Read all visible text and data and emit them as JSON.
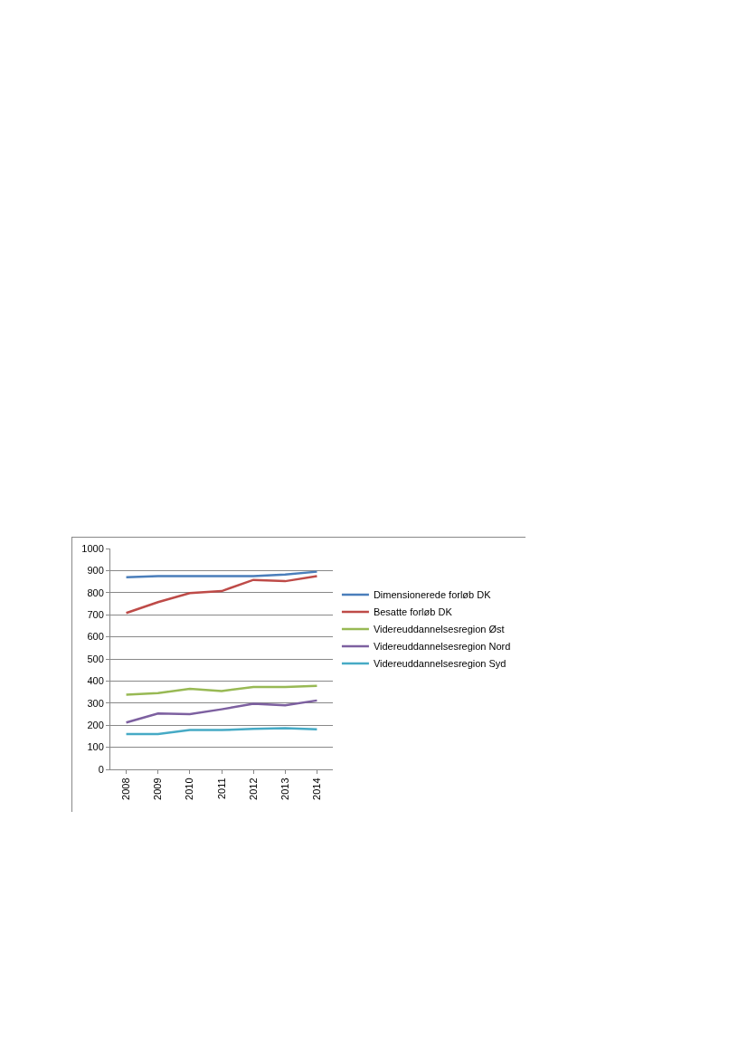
{
  "chart_data": {
    "type": "line",
    "categories": [
      "2008",
      "2009",
      "2010",
      "2011",
      "2012",
      "2013",
      "2014"
    ],
    "series": [
      {
        "name": "Dimensionerede forløb DK",
        "color": "#4a7ebb",
        "values": [
          870,
          875,
          875,
          875,
          875,
          882,
          895
        ]
      },
      {
        "name": "Besatte forløb DK",
        "color": "#be4b48",
        "values": [
          708,
          757,
          798,
          807,
          858,
          852,
          875
        ]
      },
      {
        "name": "Videreuddannelsesregion Øst",
        "color": "#98b954",
        "values": [
          338,
          345,
          365,
          355,
          373,
          373,
          378
        ]
      },
      {
        "name": "Videreuddannelsesregion Nord",
        "color": "#7d60a0",
        "values": [
          212,
          253,
          250,
          272,
          297,
          290,
          312
        ]
      },
      {
        "name": "Videreuddannelsesregion Syd",
        "color": "#46aac5",
        "values": [
          160,
          160,
          178,
          178,
          183,
          186,
          181
        ]
      }
    ],
    "ylim": [
      0,
      1000
    ],
    "yticks": [
      0,
      100,
      200,
      300,
      400,
      500,
      600,
      700,
      800,
      900,
      1000
    ],
    "grid": "y",
    "legend": "right",
    "marker": "none",
    "line_style": "solid"
  }
}
